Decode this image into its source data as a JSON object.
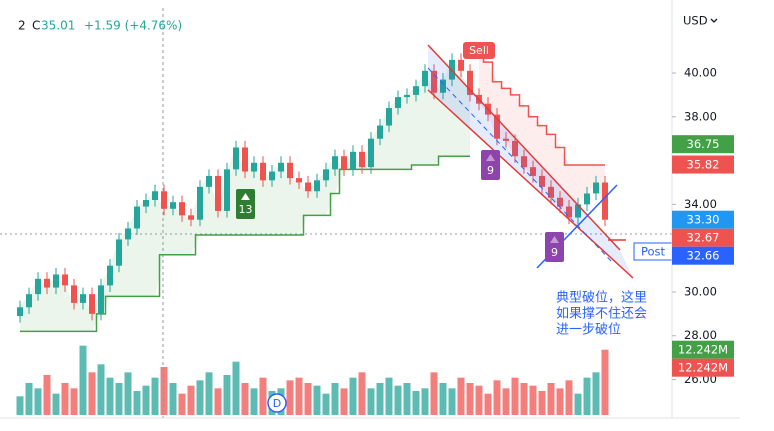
{
  "chart_data": {
    "type": "candlestick",
    "legend": {
      "prefix": "2",
      "close_label": "C",
      "close": "35.01",
      "change": "+1.59 (+4.76%)"
    },
    "currency": "USD",
    "ylim": [
      24.38,
      42.97
    ],
    "yticks": [
      {
        "value": 26,
        "label": "26.00"
      },
      {
        "value": 28,
        "label": "28.00"
      },
      {
        "value": 30,
        "label": "30.00"
      },
      {
        "value": 34,
        "label": "34.00"
      },
      {
        "value": 38,
        "label": "38.00"
      },
      {
        "value": 40,
        "label": "40.00"
      }
    ],
    "up_color": "#26a69a",
    "down_color": "#ef5350",
    "open": [
      28.9,
      29.3,
      29.9,
      30.6,
      30.2,
      30.8,
      30.3,
      29.5,
      29.9,
      29.0,
      30.3,
      31.2,
      32.4,
      32.9,
      33.9,
      34.2,
      34.6,
      33.8,
      34.1,
      33.5,
      33.3,
      34.8,
      35.3,
      33.7,
      35.6,
      36.6,
      35.5,
      35.9,
      35.1,
      35.5,
      35.9,
      35.2,
      35.0,
      34.6,
      35.1,
      35.6,
      36.2,
      35.6,
      36.4,
      35.7,
      37.0,
      37.6,
      38.4,
      38.9,
      39.0,
      39.4,
      40.1,
      39.1,
      39.7,
      40.6,
      40.1,
      39.0,
      38.6,
      38.1,
      37.0,
      36.9,
      36.2,
      35.7,
      35.3,
      34.8,
      34.3,
      33.9,
      33.4,
      34.0,
      34.5,
      35.0
    ],
    "high": [
      29.6,
      30.2,
      30.9,
      30.9,
      31.1,
      31.1,
      30.6,
      30.2,
      30.2,
      30.6,
      31.5,
      32.7,
      33.2,
      34.2,
      34.5,
      34.9,
      34.9,
      34.4,
      34.4,
      33.8,
      35.1,
      35.6,
      35.6,
      35.9,
      36.9,
      36.9,
      36.2,
      36.2,
      35.8,
      36.2,
      36.2,
      35.5,
      35.3,
      35.4,
      35.9,
      36.5,
      36.5,
      36.7,
      36.7,
      37.3,
      37.9,
      38.7,
      39.2,
      39.3,
      39.7,
      40.4,
      40.4,
      40.0,
      40.9,
      40.9,
      40.4,
      39.3,
      38.9,
      38.4,
      37.3,
      37.2,
      36.5,
      36.0,
      35.6,
      35.1,
      34.6,
      34.2,
      34.3,
      34.8,
      35.3,
      35.3
    ],
    "low": [
      28.6,
      29.0,
      29.6,
      29.9,
      29.9,
      30.0,
      29.2,
      29.2,
      28.7,
      28.7,
      30.0,
      30.9,
      32.1,
      32.6,
      33.6,
      33.9,
      33.5,
      33.5,
      33.2,
      33.0,
      33.0,
      34.5,
      33.4,
      33.4,
      35.3,
      35.2,
      35.2,
      34.8,
      34.8,
      35.2,
      34.9,
      34.7,
      34.3,
      34.3,
      34.8,
      35.3,
      35.3,
      35.3,
      35.4,
      35.4,
      36.7,
      37.3,
      38.1,
      38.6,
      38.7,
      39.1,
      38.8,
      38.8,
      39.4,
      39.8,
      38.7,
      38.3,
      37.8,
      36.7,
      36.6,
      35.9,
      35.4,
      35.0,
      34.5,
      34.0,
      33.6,
      33.1,
      33.1,
      33.7,
      34.2,
      33.0
    ],
    "close": [
      29.3,
      29.9,
      30.6,
      30.2,
      30.8,
      30.3,
      29.5,
      29.9,
      29.0,
      30.3,
      31.2,
      32.4,
      32.9,
      33.9,
      34.2,
      34.6,
      33.8,
      34.1,
      33.5,
      33.3,
      34.8,
      35.3,
      33.7,
      35.6,
      36.6,
      35.5,
      35.9,
      35.1,
      35.5,
      35.9,
      35.2,
      35.0,
      34.6,
      35.1,
      35.6,
      36.2,
      35.6,
      36.4,
      35.7,
      37.0,
      37.6,
      38.4,
      38.9,
      39.0,
      39.4,
      40.1,
      39.1,
      39.7,
      40.6,
      40.1,
      39.0,
      38.6,
      38.1,
      37.0,
      36.9,
      36.2,
      35.7,
      35.3,
      34.8,
      34.3,
      33.9,
      33.4,
      34.0,
      34.5,
      35.0,
      33.3
    ],
    "supertrend_up": [
      28.2,
      28.2,
      28.2,
      28.2,
      28.2,
      28.2,
      28.2,
      28.2,
      28.2,
      29.0,
      29.8,
      29.8,
      29.8,
      29.8,
      29.8,
      29.8,
      31.7,
      31.7,
      31.7,
      31.7,
      32.6,
      32.6,
      32.6,
      32.6,
      32.6,
      32.6,
      32.6,
      32.6,
      32.6,
      32.6,
      32.6,
      32.6,
      33.5,
      33.5,
      33.5,
      34.5,
      35.6,
      35.6,
      35.6,
      35.6,
      35.6,
      35.6,
      35.6,
      35.6,
      35.8,
      35.8,
      35.8,
      36.2,
      36.2,
      36.2,
      36.2,
      null,
      null,
      null,
      null,
      null,
      null,
      null,
      null,
      null,
      null,
      null,
      null,
      null,
      null,
      null
    ],
    "supertrend_down": [
      null,
      null,
      null,
      null,
      null,
      null,
      null,
      null,
      null,
      null,
      null,
      null,
      null,
      null,
      null,
      null,
      null,
      null,
      null,
      null,
      null,
      null,
      null,
      null,
      null,
      null,
      null,
      null,
      null,
      null,
      null,
      null,
      null,
      null,
      null,
      null,
      null,
      null,
      null,
      null,
      null,
      null,
      null,
      null,
      null,
      null,
      null,
      null,
      null,
      null,
      null,
      41.0,
      40.5,
      39.6,
      39.3,
      39.0,
      38.5,
      38.0,
      37.6,
      37.2,
      36.6,
      35.8,
      35.8,
      35.8,
      35.8,
      35.8
    ],
    "volume_ylim": [
      0,
      18
    ],
    "volume": [
      3.5,
      6,
      5,
      7.5,
      4,
      6,
      5,
      13,
      8,
      9.5,
      7,
      6,
      8,
      4.5,
      5.5,
      7,
      9,
      6,
      4,
      5.5,
      6.5,
      8,
      5,
      7.5,
      10,
      6,
      5,
      7,
      4.5,
      5,
      6.5,
      7,
      6,
      5.5,
      4,
      6,
      5,
      7,
      8,
      5,
      6,
      7,
      5.5,
      6,
      4.5,
      5,
      8,
      6,
      5,
      7,
      6,
      5.5,
      4,
      6.5,
      5,
      7,
      6,
      5.5,
      4.5,
      6,
      5,
      6.5,
      4,
      7,
      8,
      12.242
    ],
    "price_labels": [
      {
        "value": 36.75,
        "label": "36.75",
        "color": "#43a047"
      },
      {
        "value": 35.82,
        "label": "35.82",
        "color": "#ef5350"
      },
      {
        "value": 33.3,
        "label": "33.30",
        "color": "#2196f3"
      },
      {
        "value": 32.67,
        "label": "32.67",
        "color": "#ef5350"
      },
      {
        "value": 32.66,
        "label": "32.66",
        "color": "#2962ff"
      }
    ],
    "volume_labels": [
      {
        "value": 12.242,
        "label": "12.242M",
        "color": "#ef5350"
      },
      {
        "value": 12.242,
        "label": "12.242M",
        "color": "#ef5350"
      }
    ],
    "markers": {
      "sell": "Sell",
      "count_up": "13",
      "count_down_1": "9",
      "count_down_2": "9",
      "dividend": "D"
    },
    "post_label": "Post",
    "annotation": [
      "典型破位，这里",
      "如果撑不住还会",
      "进一步破位"
    ]
  }
}
